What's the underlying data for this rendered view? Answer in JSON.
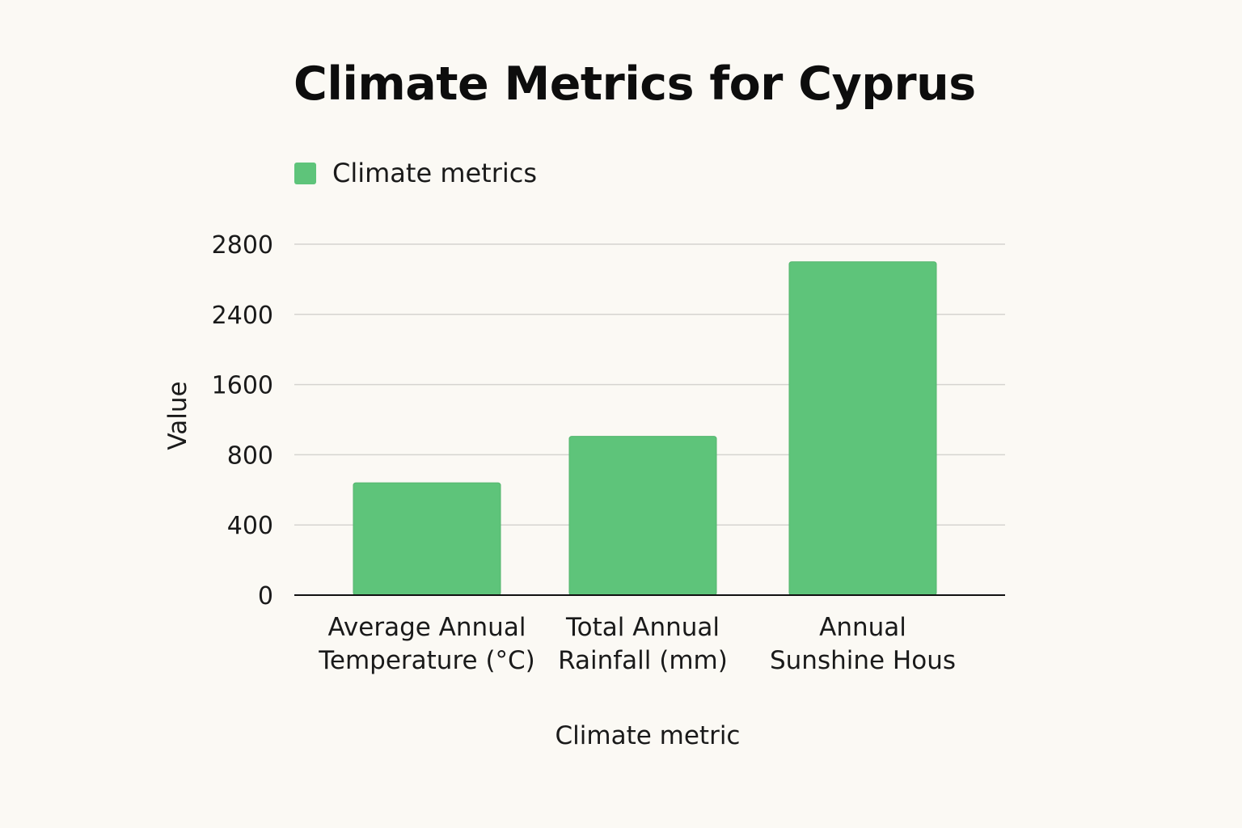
{
  "chart_data": {
    "type": "bar",
    "title": "Climate Metrics for Cyprus",
    "categories": [
      [
        "Average Annual",
        "Temperature (°C)"
      ],
      [
        "Total Annual",
        "Rainfall (mm)"
      ],
      [
        "Annual",
        "Sunshine Hous"
      ]
    ],
    "series": [
      {
        "name": "Climate metrics",
        "color": "#5ec47a",
        "values": [
          640,
          1010,
          2700
        ]
      }
    ],
    "xlabel": "Climate metric",
    "ylabel": "Value",
    "yticks": [
      0,
      400,
      800,
      1600,
      2400,
      2800
    ],
    "ylim": [
      0,
      2800
    ],
    "grid": true,
    "legend_position": "top-left"
  }
}
